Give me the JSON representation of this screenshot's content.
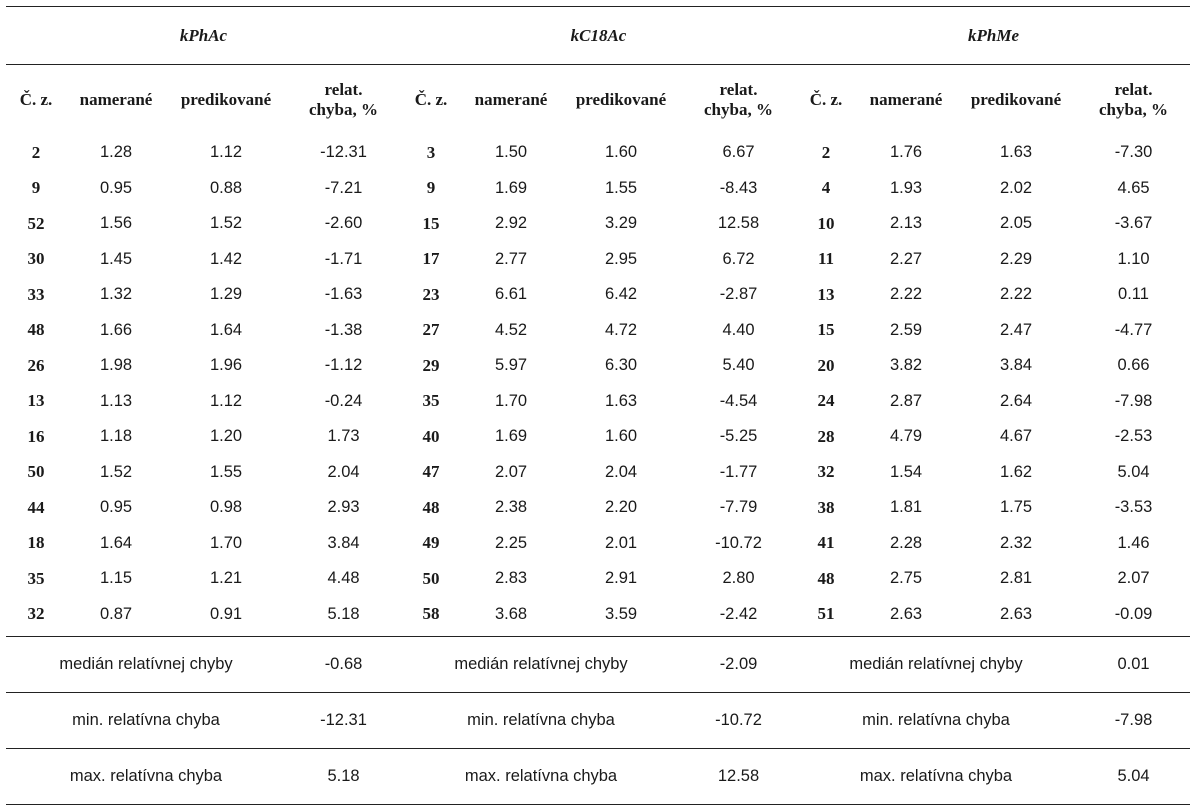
{
  "groups": [
    "kPhAc",
    "kC18Ac",
    "kPhMe"
  ],
  "headers": {
    "id": "Č. z.",
    "measured": "namerané",
    "predicted": "predikované",
    "rel_line1": "relat.",
    "rel_line2": "chyba, %"
  },
  "rows": [
    [
      [
        "2",
        "1.28",
        "1.12",
        "-12.31"
      ],
      [
        "3",
        "1.50",
        "1.60",
        "6.67"
      ],
      [
        "2",
        "1.76",
        "1.63",
        "-7.30"
      ]
    ],
    [
      [
        "9",
        "0.95",
        "0.88",
        "-7.21"
      ],
      [
        "9",
        "1.69",
        "1.55",
        "-8.43"
      ],
      [
        "4",
        "1.93",
        "2.02",
        "4.65"
      ]
    ],
    [
      [
        "52",
        "1.56",
        "1.52",
        "-2.60"
      ],
      [
        "15",
        "2.92",
        "3.29",
        "12.58"
      ],
      [
        "10",
        "2.13",
        "2.05",
        "-3.67"
      ]
    ],
    [
      [
        "30",
        "1.45",
        "1.42",
        "-1.71"
      ],
      [
        "17",
        "2.77",
        "2.95",
        "6.72"
      ],
      [
        "11",
        "2.27",
        "2.29",
        "1.10"
      ]
    ],
    [
      [
        "33",
        "1.32",
        "1.29",
        "-1.63"
      ],
      [
        "23",
        "6.61",
        "6.42",
        "-2.87"
      ],
      [
        "13",
        "2.22",
        "2.22",
        "0.11"
      ]
    ],
    [
      [
        "48",
        "1.66",
        "1.64",
        "-1.38"
      ],
      [
        "27",
        "4.52",
        "4.72",
        "4.40"
      ],
      [
        "15",
        "2.59",
        "2.47",
        "-4.77"
      ]
    ],
    [
      [
        "26",
        "1.98",
        "1.96",
        "-1.12"
      ],
      [
        "29",
        "5.97",
        "6.30",
        "5.40"
      ],
      [
        "20",
        "3.82",
        "3.84",
        "0.66"
      ]
    ],
    [
      [
        "13",
        "1.13",
        "1.12",
        "-0.24"
      ],
      [
        "35",
        "1.70",
        "1.63",
        "-4.54"
      ],
      [
        "24",
        "2.87",
        "2.64",
        "-7.98"
      ]
    ],
    [
      [
        "16",
        "1.18",
        "1.20",
        "1.73"
      ],
      [
        "40",
        "1.69",
        "1.60",
        "-5.25"
      ],
      [
        "28",
        "4.79",
        "4.67",
        "-2.53"
      ]
    ],
    [
      [
        "50",
        "1.52",
        "1.55",
        "2.04"
      ],
      [
        "47",
        "2.07",
        "2.04",
        "-1.77"
      ],
      [
        "32",
        "1.54",
        "1.62",
        "5.04"
      ]
    ],
    [
      [
        "44",
        "0.95",
        "0.98",
        "2.93"
      ],
      [
        "48",
        "2.38",
        "2.20",
        "-7.79"
      ],
      [
        "38",
        "1.81",
        "1.75",
        "-3.53"
      ]
    ],
    [
      [
        "18",
        "1.64",
        "1.70",
        "3.84"
      ],
      [
        "49",
        "2.25",
        "2.01",
        "-10.72"
      ],
      [
        "41",
        "2.28",
        "2.32",
        "1.46"
      ]
    ],
    [
      [
        "35",
        "1.15",
        "1.21",
        "4.48"
      ],
      [
        "50",
        "2.83",
        "2.91",
        "2.80"
      ],
      [
        "48",
        "2.75",
        "2.81",
        "2.07"
      ]
    ],
    [
      [
        "32",
        "0.87",
        "0.91",
        "5.18"
      ],
      [
        "58",
        "3.68",
        "3.59",
        "-2.42"
      ],
      [
        "51",
        "2.63",
        "2.63",
        "-0.09"
      ]
    ]
  ],
  "summary": [
    {
      "label": "medián relatívnej chyby",
      "values": [
        "-0.68",
        "-2.09",
        "0.01"
      ]
    },
    {
      "label": "min. relatívna chyba",
      "values": [
        "-12.31",
        "-10.72",
        "-7.98"
      ]
    },
    {
      "label": "max. relatívna chyba",
      "values": [
        "5.18",
        "12.58",
        "5.04"
      ]
    }
  ]
}
